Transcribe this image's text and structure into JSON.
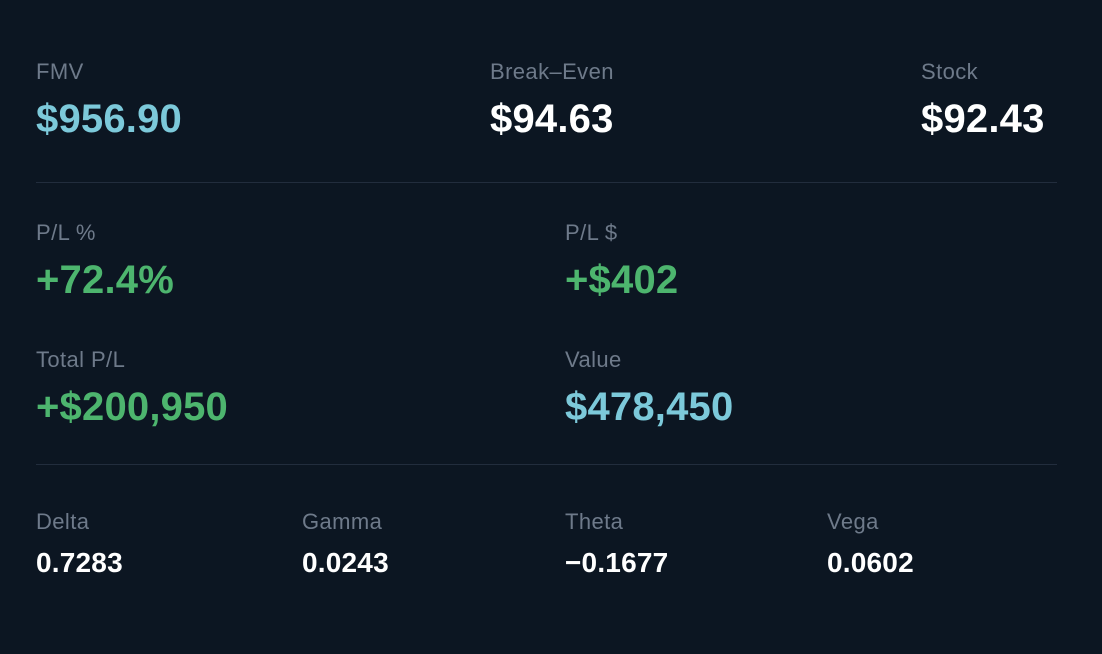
{
  "theme": {
    "background": "#0c1622",
    "label_color": "#6e7a8a",
    "divider": "#222d3d",
    "teal": "#7cc9da",
    "green": "#4db56e",
    "white": "#ffffff"
  },
  "price_row": [
    {
      "label": "FMV",
      "value": "$956.90",
      "color": "teal"
    },
    {
      "label": "Break–Even",
      "value": "$94.63",
      "color": "white"
    },
    {
      "label": "Stock",
      "value": "$92.43",
      "color": "white"
    }
  ],
  "pl_row": [
    {
      "label": "P/L %",
      "value": "+72.4%",
      "color": "green"
    },
    {
      "label": "P/L $",
      "value": "+$402",
      "color": "green"
    }
  ],
  "total_row": [
    {
      "label": "Total P/L",
      "value": "+$200,950",
      "color": "green"
    },
    {
      "label": "Value",
      "value": "$478,450",
      "color": "teal"
    }
  ],
  "greeks_row": [
    {
      "label": "Delta",
      "value": "0.7283"
    },
    {
      "label": "Gamma",
      "value": "0.0243"
    },
    {
      "label": "Theta",
      "value": "−0.1677"
    },
    {
      "label": "Vega",
      "value": "0.0602"
    }
  ]
}
